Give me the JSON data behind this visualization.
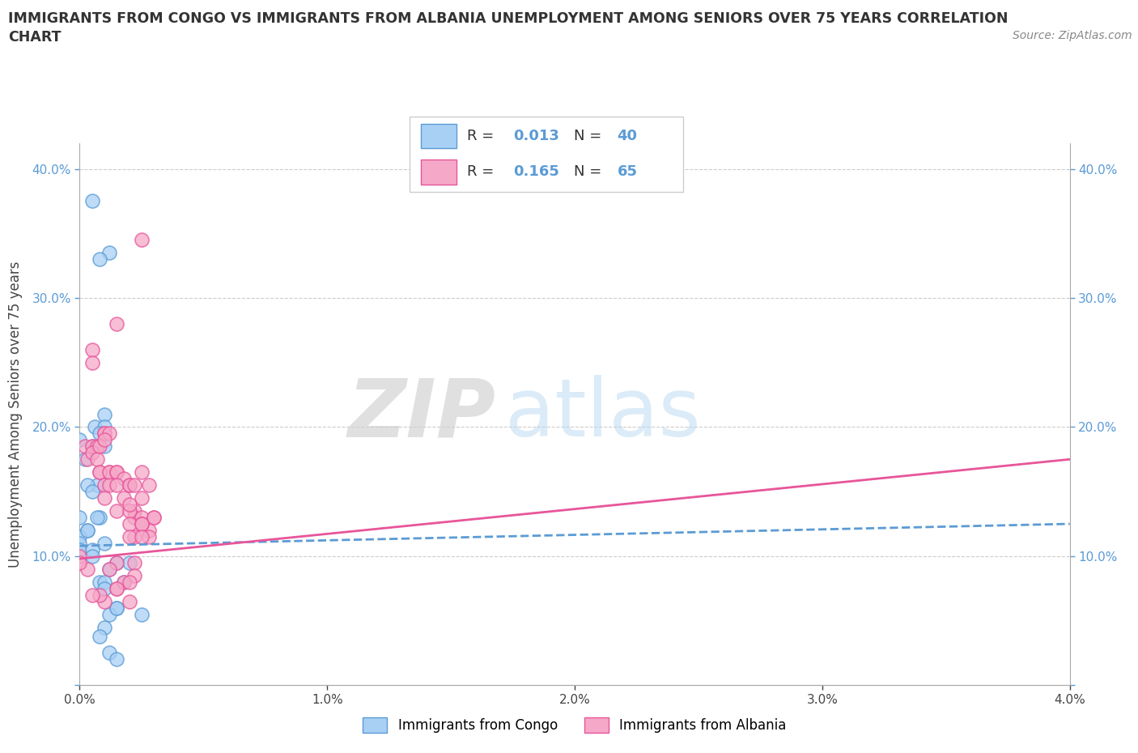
{
  "title_line1": "IMMIGRANTS FROM CONGO VS IMMIGRANTS FROM ALBANIA UNEMPLOYMENT AMONG SENIORS OVER 75 YEARS CORRELATION",
  "title_line2": "CHART",
  "source": "Source: ZipAtlas.com",
  "ylabel": "Unemployment Among Seniors over 75 years",
  "legend_congo": "Immigrants from Congo",
  "legend_albania": "Immigrants from Albania",
  "R_congo": 0.013,
  "N_congo": 40,
  "R_albania": 0.165,
  "N_albania": 65,
  "congo_color": "#A8D0F5",
  "albania_color": "#F5A8C8",
  "congo_line_color": "#5B9BD5",
  "albania_line_color": "#E8559A",
  "watermark_zip": "ZIP",
  "watermark_atlas": "atlas",
  "xlim": [
    0.0,
    0.04
  ],
  "ylim": [
    0.0,
    0.42
  ],
  "x_ticks": [
    0.0,
    0.01,
    0.02,
    0.03,
    0.04
  ],
  "x_tick_labels": [
    "0.0%",
    "1.0%",
    "2.0%",
    "3.0%",
    "4.0%"
  ],
  "y_ticks": [
    0.0,
    0.1,
    0.2,
    0.3,
    0.4
  ],
  "y_tick_labels": [
    "",
    "10.0%",
    "20.0%",
    "30.0%",
    "40.0%"
  ],
  "congo_x": [
    0.0005,
    0.0012,
    0.0008,
    0.001,
    0.0006,
    0.0,
    0.001,
    0.0008,
    0.0007,
    0.001,
    0.0005,
    0.0003,
    0.0002,
    0.0008,
    0.0005,
    0.0,
    0.0003,
    0.0,
    0.0,
    0.0,
    0.0007,
    0.0003,
    0.0005,
    0.001,
    0.0012,
    0.0008,
    0.0015,
    0.001,
    0.0015,
    0.0012,
    0.002,
    0.0018,
    0.0015,
    0.0025,
    0.001,
    0.0008,
    0.0012,
    0.0015,
    0.001,
    0.0005
  ],
  "congo_y": [
    0.375,
    0.335,
    0.33,
    0.21,
    0.2,
    0.19,
    0.2,
    0.195,
    0.155,
    0.185,
    0.185,
    0.155,
    0.175,
    0.13,
    0.15,
    0.13,
    0.12,
    0.115,
    0.11,
    0.105,
    0.13,
    0.12,
    0.105,
    0.11,
    0.09,
    0.08,
    0.095,
    0.08,
    0.06,
    0.055,
    0.095,
    0.08,
    0.06,
    0.055,
    0.045,
    0.038,
    0.025,
    0.02,
    0.075,
    0.1
  ],
  "albania_x": [
    0.0003,
    0.0005,
    0.0,
    0.0005,
    0.0002,
    0.0,
    0.0003,
    0.0005,
    0.0007,
    0.0005,
    0.0008,
    0.001,
    0.0007,
    0.001,
    0.0008,
    0.0012,
    0.001,
    0.0015,
    0.0012,
    0.0008,
    0.001,
    0.0012,
    0.0015,
    0.0012,
    0.001,
    0.0015,
    0.0018,
    0.0015,
    0.002,
    0.0015,
    0.002,
    0.0025,
    0.0022,
    0.0018,
    0.0022,
    0.002,
    0.0025,
    0.0022,
    0.0028,
    0.002,
    0.0025,
    0.003,
    0.0028,
    0.0025,
    0.0022,
    0.002,
    0.0025,
    0.003,
    0.0028,
    0.0025,
    0.002,
    0.0025,
    0.0022,
    0.0015,
    0.0012,
    0.0025,
    0.0022,
    0.002,
    0.0015,
    0.0018,
    0.001,
    0.0008,
    0.0005,
    0.002,
    0.0015
  ],
  "albania_y": [
    0.09,
    0.26,
    0.1,
    0.25,
    0.185,
    0.095,
    0.175,
    0.185,
    0.185,
    0.18,
    0.165,
    0.195,
    0.175,
    0.195,
    0.185,
    0.195,
    0.19,
    0.28,
    0.165,
    0.165,
    0.155,
    0.165,
    0.165,
    0.155,
    0.145,
    0.165,
    0.16,
    0.155,
    0.155,
    0.135,
    0.155,
    0.165,
    0.135,
    0.145,
    0.13,
    0.135,
    0.145,
    0.155,
    0.155,
    0.14,
    0.13,
    0.13,
    0.12,
    0.125,
    0.115,
    0.125,
    0.125,
    0.13,
    0.115,
    0.125,
    0.115,
    0.115,
    0.095,
    0.095,
    0.09,
    0.345,
    0.085,
    0.065,
    0.075,
    0.08,
    0.065,
    0.07,
    0.07,
    0.08,
    0.075
  ],
  "congo_trendline_x": [
    0.0,
    0.04
  ],
  "congo_trendline_y": [
    0.108,
    0.125
  ],
  "albania_trendline_x": [
    0.0,
    0.04
  ],
  "albania_trendline_y": [
    0.098,
    0.175
  ]
}
